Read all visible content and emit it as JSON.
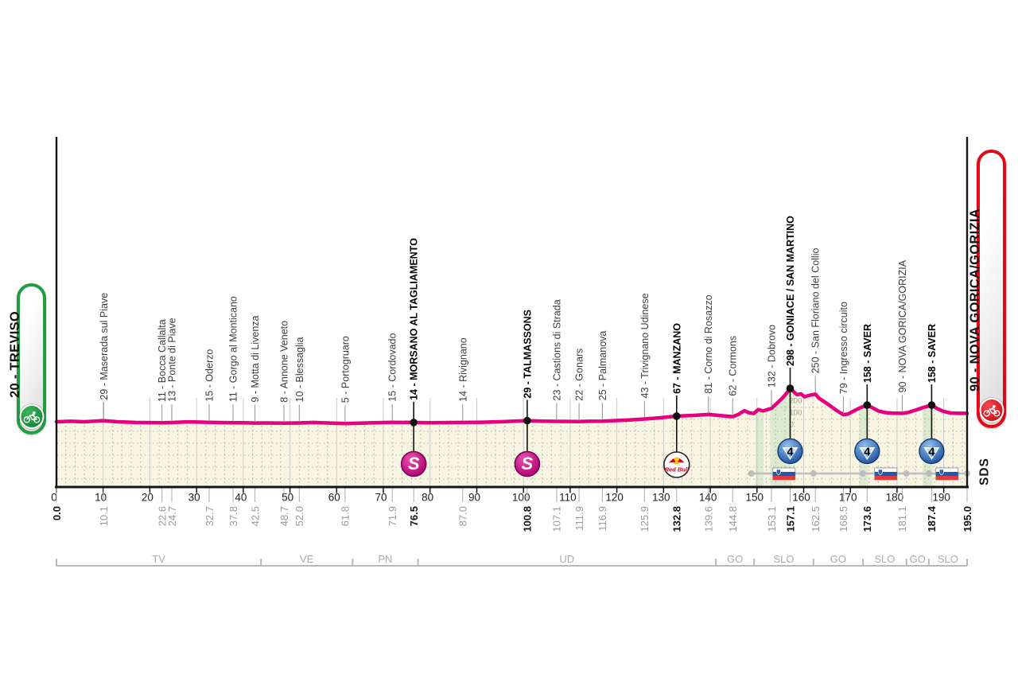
{
  "start_badge": {
    "label": "20 - TREVISO"
  },
  "finish_badge": {
    "label": "90 - NOVA GORICA/GORIZIA"
  },
  "logo": {
    "label": "SDS"
  },
  "colors": {
    "route": "#e6007e",
    "terrain_fill": "#f8f6e3",
    "grid_dot": "#b6b6a4",
    "grid_solid": "#c9c9c9",
    "climb_band": "#dcead0",
    "start_green": "#1f9c44",
    "finish_red": "#e30615",
    "sprint_pink": "#ad0070",
    "cat4_blue": "#174a9e",
    "axis_black": "#151515",
    "muted_gray": "#9a9a9a"
  },
  "axis": {
    "ticks": [
      0,
      10,
      20,
      30,
      40,
      50,
      60,
      70,
      80,
      90,
      100,
      110,
      120,
      130,
      140,
      150,
      160,
      170,
      180,
      190
    ],
    "total_km": 195
  },
  "elevation_scale": {
    "at_km": 157.1,
    "labels": [
      {
        "text": "200",
        "m": 200
      },
      {
        "text": "100",
        "m": 100
      },
      {
        "text": "0",
        "m": 0
      }
    ]
  },
  "provinces": {
    "boundaries_km": [
      0,
      43.8,
      63.4,
      77.4,
      141.2,
      149.4,
      162.1,
      172.7,
      182.0,
      186.8,
      195
    ],
    "labels": [
      "TV",
      "VE",
      "PN",
      "UD",
      "GO",
      "SLO",
      "GO",
      "SLO",
      "GO",
      "SLO"
    ]
  },
  "waypoints": [
    {
      "km": 0.0,
      "label": null,
      "bold": true,
      "icon": null
    },
    {
      "km": 10.1,
      "label": "29 - Maserada sul Piave",
      "bold": false,
      "icon": null
    },
    {
      "km": 22.6,
      "label": "11 - Bocca Callalta",
      "bold": false,
      "icon": null
    },
    {
      "km": 24.7,
      "label": "13 - Ponte di Piave",
      "bold": false,
      "icon": null
    },
    {
      "km": 32.7,
      "label": "15 - Oderzo",
      "bold": false,
      "icon": null
    },
    {
      "km": 37.8,
      "label": "11 - Gorgo al Monticano",
      "bold": false,
      "icon": null
    },
    {
      "km": 42.5,
      "label": "9 - Motta di Livenza",
      "bold": false,
      "icon": null
    },
    {
      "km": 48.7,
      "label": "8 - Annone Veneto",
      "bold": false,
      "icon": null
    },
    {
      "km": 52.0,
      "label": "10 - Blessaglia",
      "bold": false,
      "icon": null
    },
    {
      "km": 61.8,
      "label": "5 - Portogruaro",
      "bold": false,
      "icon": null
    },
    {
      "km": 71.9,
      "label": "15 - Cordovado",
      "bold": false,
      "icon": null
    },
    {
      "km": 76.5,
      "label": "14 - MORSANO AL TAGLIAMENTO",
      "bold": true,
      "icon": "sprint"
    },
    {
      "km": 87.0,
      "label": "14 - Rivignano",
      "bold": false,
      "icon": null
    },
    {
      "km": 100.8,
      "label": "29 - TALMASSONS",
      "bold": true,
      "icon": "sprint"
    },
    {
      "km": 107.1,
      "label": "23 - Castions di Strada",
      "bold": false,
      "icon": null
    },
    {
      "km": 111.9,
      "label": "22 - Gonars",
      "bold": false,
      "icon": null
    },
    {
      "km": 116.9,
      "label": "25 - Palmanova",
      "bold": false,
      "icon": null
    },
    {
      "km": 125.9,
      "label": "43 - Trivignano Udinese",
      "bold": false,
      "icon": null
    },
    {
      "km": 132.8,
      "label": "67 - MANZANO",
      "bold": true,
      "icon": "redbull"
    },
    {
      "km": 139.6,
      "label": "81 - Corno di Rosazzo",
      "bold": false,
      "icon": null
    },
    {
      "km": 144.8,
      "label": "62 - Cormons",
      "bold": false,
      "icon": null
    },
    {
      "km": 153.1,
      "label": "132 - Dobrovo",
      "bold": false,
      "icon": null
    },
    {
      "km": 157.1,
      "label": "298 - GONIACE / SAN MARTINO",
      "bold": true,
      "icon": "cat4"
    },
    {
      "km": 162.5,
      "label": "250 - San Floriano del Collio",
      "bold": false,
      "icon": null
    },
    {
      "km": 168.5,
      "label": "79 - Ingresso circuito",
      "bold": false,
      "icon": null
    },
    {
      "km": 173.6,
      "label": "158 - SAVER",
      "bold": true,
      "icon": "cat4"
    },
    {
      "km": 181.1,
      "label": "90 - NOVA GORICA/GORIZIA",
      "bold": false,
      "icon": null
    },
    {
      "km": 187.4,
      "label": "158 - SAVER",
      "bold": true,
      "icon": "cat4"
    },
    {
      "km": 195.0,
      "label": null,
      "bold": true,
      "icon": null
    }
  ],
  "flags_km": [
    155.8,
    177.6,
    190.7
  ],
  "circuit": {
    "from_km": 148.8,
    "to_km": 195,
    "dots_km": [
      148.8,
      162.1,
      172.7,
      182.0,
      186.8,
      195
    ]
  },
  "climb_bands_km": [
    [
      149.7,
      151.4
    ],
    [
      152.8,
      157.4
    ],
    [
      171.9,
      173.7
    ],
    [
      185.5,
      187.6
    ]
  ],
  "chart_data": {
    "type": "line",
    "x_unit": "km",
    "y_unit": "m",
    "x_range": [
      0,
      195
    ],
    "x_tick_step": 10,
    "y_gridline_step_m": 100,
    "legend": "none",
    "profile": [
      [
        0,
        20
      ],
      [
        3,
        24
      ],
      [
        6,
        20
      ],
      [
        10.1,
        29
      ],
      [
        13,
        20
      ],
      [
        17,
        14
      ],
      [
        22.6,
        11
      ],
      [
        24.7,
        13
      ],
      [
        28,
        19
      ],
      [
        32.7,
        15
      ],
      [
        35,
        13
      ],
      [
        37.8,
        11
      ],
      [
        40,
        12
      ],
      [
        42.5,
        9
      ],
      [
        45,
        10
      ],
      [
        48.7,
        8
      ],
      [
        52,
        10
      ],
      [
        55,
        14
      ],
      [
        58,
        10
      ],
      [
        61.8,
        5
      ],
      [
        65,
        8
      ],
      [
        68,
        12
      ],
      [
        71.9,
        15
      ],
      [
        76.5,
        14
      ],
      [
        80,
        11
      ],
      [
        84,
        13
      ],
      [
        87,
        14
      ],
      [
        91,
        16
      ],
      [
        95,
        20
      ],
      [
        100.8,
        29
      ],
      [
        104,
        25
      ],
      [
        107.1,
        23
      ],
      [
        111.9,
        22
      ],
      [
        114,
        24
      ],
      [
        116.9,
        25
      ],
      [
        120,
        30
      ],
      [
        123,
        36
      ],
      [
        125.9,
        43
      ],
      [
        129,
        52
      ],
      [
        132.8,
        67
      ],
      [
        136,
        72
      ],
      [
        139.6,
        81
      ],
      [
        142,
        72
      ],
      [
        144.8,
        62
      ],
      [
        146,
        80
      ],
      [
        147.3,
        112
      ],
      [
        148.3,
        95
      ],
      [
        149.3,
        88
      ],
      [
        150.3,
        122
      ],
      [
        151.3,
        110
      ],
      [
        152,
        118
      ],
      [
        153.1,
        132
      ],
      [
        154.2,
        170
      ],
      [
        155.4,
        215
      ],
      [
        156.3,
        255
      ],
      [
        157.1,
        298
      ],
      [
        157.8,
        272
      ],
      [
        158.6,
        245
      ],
      [
        159.4,
        252
      ],
      [
        160.2,
        228
      ],
      [
        161,
        238
      ],
      [
        162.5,
        250
      ],
      [
        163.3,
        215
      ],
      [
        164.5,
        185
      ],
      [
        165.8,
        150
      ],
      [
        167,
        115
      ],
      [
        168.5,
        79
      ],
      [
        169.5,
        85
      ],
      [
        171,
        115
      ],
      [
        172.3,
        140
      ],
      [
        173.6,
        158
      ],
      [
        174.8,
        135
      ],
      [
        176,
        110
      ],
      [
        177.5,
        96
      ],
      [
        179,
        92
      ],
      [
        181.1,
        90
      ],
      [
        182.5,
        98
      ],
      [
        184,
        118
      ],
      [
        185.7,
        140
      ],
      [
        187.4,
        158
      ],
      [
        188.6,
        130
      ],
      [
        190,
        105
      ],
      [
        191.5,
        93
      ],
      [
        193,
        90
      ],
      [
        195,
        90
      ]
    ]
  }
}
